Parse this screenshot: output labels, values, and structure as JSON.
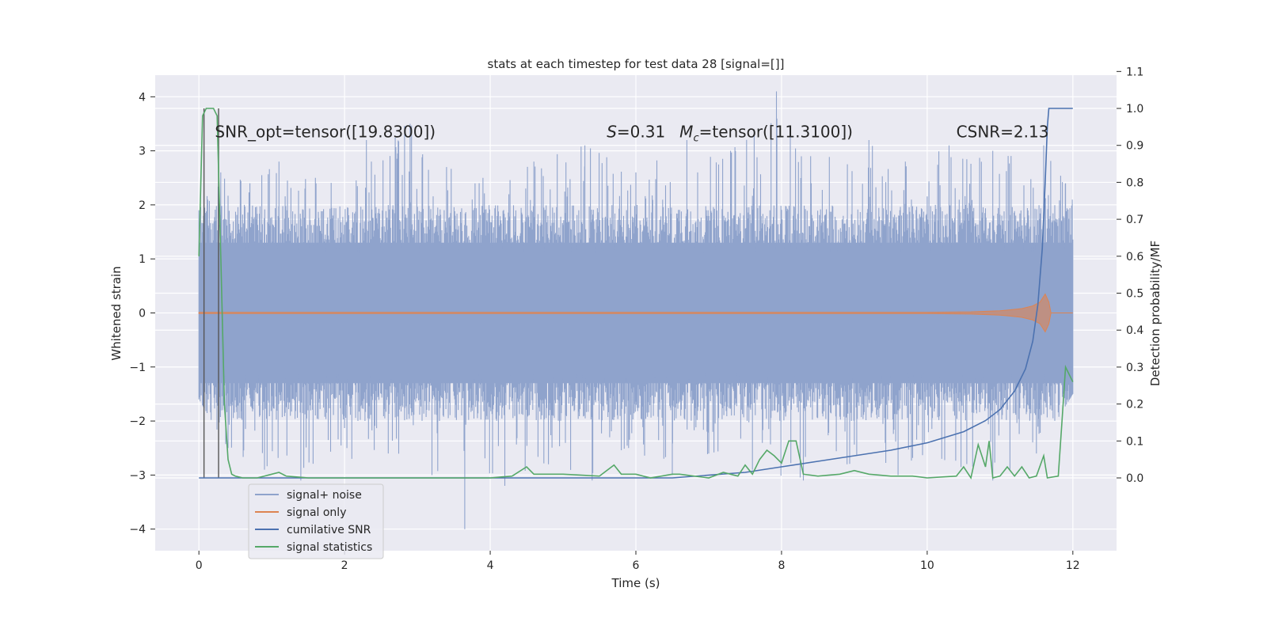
{
  "chart_data": {
    "type": "line",
    "title": "stats at each timestep for test data 28 [signal=[]]",
    "xlabel": "Time (s)",
    "ylabel_left": "Whitened strain",
    "ylabel_right": "Detection probability/MF",
    "xlim": [
      -0.6,
      12.6
    ],
    "ylim_left": [
      -4.4,
      4.4
    ],
    "ylim_right": [
      -0.197,
      1.09
    ],
    "x_ticks": [
      0,
      2,
      4,
      6,
      8,
      10,
      12
    ],
    "x_tick_labels": [
      "0",
      "2",
      "4",
      "6",
      "8",
      "10",
      "12"
    ],
    "y_left_ticks": [
      -4,
      -3,
      -2,
      -1,
      0,
      1,
      2,
      3,
      4
    ],
    "y_left_tick_labels": [
      "−4",
      "−3",
      "−2",
      "−1",
      "0",
      "1",
      "2",
      "3",
      "4"
    ],
    "y_right_ticks": [
      0.0,
      0.1,
      0.2,
      0.3,
      0.4,
      0.5,
      0.6,
      0.7,
      0.8,
      0.9,
      1.0,
      1.1
    ],
    "y_right_tick_labels": [
      "0.0",
      "0.1",
      "0.2",
      "0.3",
      "0.4",
      "0.5",
      "0.6",
      "0.7",
      "0.8",
      "0.9",
      "1.0",
      "1.1"
    ],
    "grid": true,
    "legend_position": "lower-left",
    "annotations": [
      {
        "text": "SNR_opt=tensor([19.8300])",
        "x": 0.22,
        "y": 3.25
      },
      {
        "text": "=0.31",
        "prefix_italic": "S",
        "x": 5.6,
        "y": 3.25
      },
      {
        "text": "=tensor([11.3100])",
        "prefix_italic": "M",
        "prefix_sub": "c",
        "x": 6.6,
        "y": 3.25
      },
      {
        "text": "CSNR=2.13",
        "x": 10.4,
        "y": 3.25
      }
    ],
    "vlines": [
      0.07,
      0.27
    ],
    "series": [
      {
        "name": "signal+ noise",
        "axis": "left",
        "color": "#8fa3cc",
        "x_range": [
          0,
          12
        ],
        "core_envelope": [
          -1.3,
          1.3
        ],
        "typical_envelope": [
          -2.0,
          2.0
        ],
        "peaks_high": [
          [
            0.0,
            1.9
          ],
          [
            0.3,
            2.6
          ],
          [
            0.7,
            2.4
          ],
          [
            1.1,
            2.8
          ],
          [
            1.6,
            2.5
          ],
          [
            2.3,
            3.2
          ],
          [
            2.9,
            3.5
          ],
          [
            3.4,
            2.7
          ],
          [
            3.9,
            2.5
          ],
          [
            4.6,
            2.8
          ],
          [
            5.3,
            3.1
          ],
          [
            6.0,
            2.6
          ],
          [
            6.7,
            3.2
          ],
          [
            7.3,
            3.0
          ],
          [
            7.93,
            4.1
          ],
          [
            8.4,
            2.9
          ],
          [
            9.2,
            3.2
          ],
          [
            9.7,
            2.8
          ],
          [
            10.3,
            3.1
          ],
          [
            10.9,
            3.0
          ],
          [
            11.6,
            3.1
          ],
          [
            11.9,
            2.4
          ]
        ],
        "peaks_low": [
          [
            0.0,
            -1.6
          ],
          [
            0.4,
            -2.5
          ],
          [
            0.9,
            -2.9
          ],
          [
            1.4,
            -3.1
          ],
          [
            2.1,
            -2.7
          ],
          [
            2.6,
            -2.6
          ],
          [
            3.2,
            -3.0
          ],
          [
            3.65,
            -4.0
          ],
          [
            4.2,
            -3.2
          ],
          [
            4.8,
            -2.8
          ],
          [
            5.4,
            -3.1
          ],
          [
            5.9,
            -2.5
          ],
          [
            6.5,
            -3.0
          ],
          [
            7.0,
            -2.6
          ],
          [
            7.6,
            -2.9
          ],
          [
            8.3,
            -3.1
          ],
          [
            8.9,
            -2.8
          ],
          [
            9.6,
            -3.0
          ],
          [
            10.2,
            -2.7
          ],
          [
            10.9,
            -3.1
          ],
          [
            11.5,
            -2.6
          ],
          [
            12.0,
            -1.5
          ]
        ]
      },
      {
        "name": "signal only",
        "axis": "left",
        "color": "#dd8452",
        "x": [
          0,
          10.0,
          10.6,
          11.0,
          11.3,
          11.45,
          11.55,
          11.62,
          11.67,
          11.7,
          12
        ],
        "amplitude": [
          0.01,
          0.01,
          0.02,
          0.04,
          0.08,
          0.13,
          0.2,
          0.35,
          0.2,
          0.0,
          0.0
        ]
      },
      {
        "name": "cumilative SNR",
        "axis": "right",
        "color": "#4c72b0",
        "x": [
          0,
          6.5,
          7.5,
          8.0,
          8.5,
          9.0,
          9.5,
          10.0,
          10.5,
          10.8,
          11.0,
          11.2,
          11.35,
          11.45,
          11.52,
          11.58,
          11.62,
          11.65,
          11.67,
          12
        ],
        "values": [
          0.0,
          0.0,
          0.015,
          0.03,
          0.045,
          0.06,
          0.075,
          0.095,
          0.125,
          0.155,
          0.185,
          0.235,
          0.295,
          0.37,
          0.47,
          0.62,
          0.8,
          0.95,
          1.0,
          1.0
        ]
      },
      {
        "name": "signal statistics",
        "axis": "right",
        "color": "#55a868",
        "x": [
          0,
          0.05,
          0.1,
          0.15,
          0.2,
          0.25,
          0.3,
          0.35,
          0.4,
          0.45,
          0.5,
          0.6,
          0.8,
          1.0,
          1.1,
          1.2,
          1.5,
          2.0,
          3.0,
          4.0,
          4.3,
          4.5,
          4.6,
          5.0,
          5.5,
          5.7,
          5.8,
          6.0,
          6.2,
          6.5,
          6.6,
          6.8,
          7.0,
          7.2,
          7.4,
          7.5,
          7.6,
          7.7,
          7.8,
          7.9,
          8.0,
          8.1,
          8.2,
          8.3,
          8.5,
          8.8,
          9.0,
          9.2,
          9.5,
          9.8,
          10.0,
          10.4,
          10.5,
          10.6,
          10.7,
          10.8,
          10.85,
          10.9,
          11.0,
          11.1,
          11.2,
          11.3,
          11.4,
          11.5,
          11.6,
          11.65,
          11.8,
          11.85,
          11.9,
          12.0
        ],
        "values": [
          0.6,
          0.98,
          1.0,
          1.0,
          1.0,
          0.98,
          0.6,
          0.2,
          0.05,
          0.01,
          0.005,
          0.0,
          0.0,
          0.01,
          0.015,
          0.005,
          0.0,
          0.0,
          0.0,
          0.0,
          0.005,
          0.03,
          0.01,
          0.01,
          0.005,
          0.035,
          0.01,
          0.01,
          0.0,
          0.01,
          0.01,
          0.005,
          0.0,
          0.015,
          0.005,
          0.035,
          0.01,
          0.05,
          0.075,
          0.06,
          0.04,
          0.1,
          0.1,
          0.01,
          0.005,
          0.01,
          0.02,
          0.01,
          0.005,
          0.005,
          0.0,
          0.005,
          0.03,
          0.0,
          0.09,
          0.03,
          0.1,
          0.0,
          0.005,
          0.03,
          0.005,
          0.03,
          0.0,
          0.005,
          0.06,
          0.0,
          0.005,
          0.15,
          0.3,
          0.26
        ]
      }
    ]
  }
}
